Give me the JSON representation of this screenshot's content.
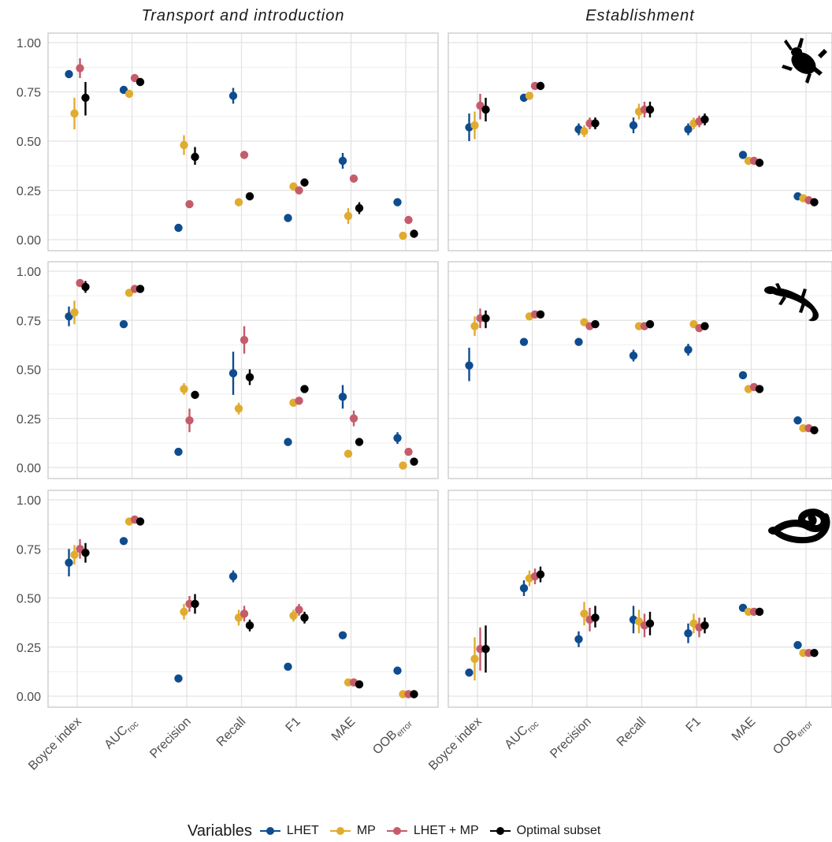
{
  "chart_data": {
    "type": "scatter",
    "facet_columns": [
      "Transport and introduction",
      "Establishment"
    ],
    "metrics": [
      "Boyce index",
      "AUC",
      "Precision",
      "Recall",
      "F1",
      "MAE",
      "OOB"
    ],
    "metric_subscripts": [
      "",
      "roc",
      "",
      "",
      "",
      "",
      "error"
    ],
    "ylim": [
      0,
      1
    ],
    "yticks": [
      "0.00",
      "0.25",
      "0.50",
      "0.75",
      "1.00"
    ],
    "row_icons": [
      "frog-silhouette",
      "lizard-silhouette",
      "snake-silhouette"
    ],
    "legend": {
      "title": "Variables",
      "position": "bottom",
      "entries": [
        {
          "name": "LHET",
          "color": "#0f4c8f"
        },
        {
          "name": "MP",
          "color": "#e0ac2f"
        },
        {
          "name": "LHET + MP",
          "color": "#c45c6c"
        },
        {
          "name": "Optimal subset",
          "color": "#000000"
        }
      ]
    },
    "panels": [
      {
        "row": 1,
        "column": "Transport and introduction",
        "series": [
          {
            "name": "LHET",
            "values": [
              0.84,
              0.76,
              0.06,
              0.73,
              0.11,
              0.4,
              0.19
            ],
            "low": [
              0.82,
              0.75,
              0.05,
              0.69,
              0.1,
              0.36,
              0.18
            ],
            "high": [
              0.86,
              0.77,
              0.07,
              0.77,
              0.12,
              0.44,
              0.2
            ]
          },
          {
            "name": "MP",
            "values": [
              0.64,
              0.74,
              0.48,
              0.19,
              0.27,
              0.12,
              0.02
            ],
            "low": [
              0.56,
              0.72,
              0.43,
              0.18,
              0.26,
              0.08,
              0.01
            ],
            "high": [
              0.72,
              0.76,
              0.53,
              0.2,
              0.28,
              0.16,
              0.03
            ]
          },
          {
            "name": "LHET + MP",
            "values": [
              0.87,
              0.82,
              0.18,
              0.43,
              0.25,
              0.31,
              0.1
            ],
            "low": [
              0.82,
              0.81,
              0.17,
              0.42,
              0.24,
              0.3,
              0.09
            ],
            "high": [
              0.92,
              0.83,
              0.19,
              0.44,
              0.26,
              0.32,
              0.11
            ]
          },
          {
            "name": "Optimal subset",
            "values": [
              0.72,
              0.8,
              0.42,
              0.22,
              0.29,
              0.16,
              0.03
            ],
            "low": [
              0.63,
              0.79,
              0.38,
              0.2,
              0.28,
              0.13,
              0.02
            ],
            "high": [
              0.8,
              0.81,
              0.47,
              0.24,
              0.3,
              0.19,
              0.04
            ]
          }
        ]
      },
      {
        "row": 1,
        "column": "Establishment",
        "series": [
          {
            "name": "LHET",
            "values": [
              0.57,
              0.72,
              0.56,
              0.58,
              0.56,
              0.43,
              0.22
            ],
            "low": [
              0.5,
              0.7,
              0.53,
              0.54,
              0.53,
              0.41,
              0.21
            ],
            "high": [
              0.64,
              0.74,
              0.59,
              0.62,
              0.59,
              0.45,
              0.23
            ]
          },
          {
            "name": "MP",
            "values": [
              0.58,
              0.73,
              0.55,
              0.65,
              0.59,
              0.4,
              0.21
            ],
            "low": [
              0.51,
              0.71,
              0.52,
              0.61,
              0.56,
              0.39,
              0.2
            ],
            "high": [
              0.65,
              0.75,
              0.58,
              0.69,
              0.62,
              0.41,
              0.22
            ]
          },
          {
            "name": "LHET + MP",
            "values": [
              0.68,
              0.78,
              0.59,
              0.66,
              0.6,
              0.4,
              0.2
            ],
            "low": [
              0.61,
              0.76,
              0.56,
              0.62,
              0.57,
              0.39,
              0.19
            ],
            "high": [
              0.74,
              0.8,
              0.62,
              0.7,
              0.63,
              0.41,
              0.21
            ]
          },
          {
            "name": "Optimal subset",
            "values": [
              0.66,
              0.78,
              0.59,
              0.66,
              0.61,
              0.39,
              0.19
            ],
            "low": [
              0.6,
              0.76,
              0.56,
              0.62,
              0.58,
              0.38,
              0.18
            ],
            "high": [
              0.72,
              0.8,
              0.62,
              0.7,
              0.64,
              0.4,
              0.2
            ]
          }
        ]
      },
      {
        "row": 2,
        "column": "Transport and introduction",
        "series": [
          {
            "name": "LHET",
            "values": [
              0.77,
              0.73,
              0.08,
              0.48,
              0.13,
              0.36,
              0.15
            ],
            "low": [
              0.72,
              0.72,
              0.07,
              0.37,
              0.12,
              0.3,
              0.12
            ],
            "high": [
              0.82,
              0.74,
              0.09,
              0.59,
              0.14,
              0.42,
              0.18
            ]
          },
          {
            "name": "MP",
            "values": [
              0.79,
              0.89,
              0.4,
              0.3,
              0.33,
              0.07,
              0.01
            ],
            "low": [
              0.73,
              0.88,
              0.37,
              0.27,
              0.31,
              0.06,
              0.0
            ],
            "high": [
              0.85,
              0.9,
              0.43,
              0.33,
              0.35,
              0.08,
              0.02
            ]
          },
          {
            "name": "LHET + MP",
            "values": [
              0.94,
              0.91,
              0.24,
              0.65,
              0.34,
              0.25,
              0.08
            ],
            "low": [
              0.93,
              0.9,
              0.18,
              0.58,
              0.32,
              0.21,
              0.07
            ],
            "high": [
              0.95,
              0.92,
              0.3,
              0.72,
              0.36,
              0.29,
              0.09
            ]
          },
          {
            "name": "Optimal subset",
            "values": [
              0.92,
              0.91,
              0.37,
              0.46,
              0.4,
              0.13,
              0.03
            ],
            "low": [
              0.89,
              0.9,
              0.35,
              0.42,
              0.39,
              0.12,
              0.02
            ],
            "high": [
              0.95,
              0.92,
              0.39,
              0.5,
              0.41,
              0.14,
              0.04
            ]
          }
        ]
      },
      {
        "row": 2,
        "column": "Establishment",
        "series": [
          {
            "name": "LHET",
            "values": [
              0.52,
              0.64,
              0.64,
              0.57,
              0.6,
              0.47,
              0.24
            ],
            "low": [
              0.44,
              0.63,
              0.63,
              0.54,
              0.57,
              0.46,
              0.23
            ],
            "high": [
              0.61,
              0.65,
              0.65,
              0.6,
              0.63,
              0.48,
              0.25
            ]
          },
          {
            "name": "MP",
            "values": [
              0.72,
              0.77,
              0.74,
              0.72,
              0.73,
              0.4,
              0.2
            ],
            "low": [
              0.67,
              0.76,
              0.73,
              0.7,
              0.72,
              0.39,
              0.19
            ],
            "high": [
              0.77,
              0.78,
              0.75,
              0.74,
              0.74,
              0.41,
              0.21
            ]
          },
          {
            "name": "LHET + MP",
            "values": [
              0.76,
              0.78,
              0.72,
              0.72,
              0.71,
              0.41,
              0.2
            ],
            "low": [
              0.71,
              0.77,
              0.71,
              0.7,
              0.7,
              0.4,
              0.19
            ],
            "high": [
              0.81,
              0.79,
              0.73,
              0.74,
              0.72,
              0.42,
              0.21
            ]
          },
          {
            "name": "Optimal subset",
            "values": [
              0.76,
              0.78,
              0.73,
              0.73,
              0.72,
              0.4,
              0.19
            ],
            "low": [
              0.71,
              0.77,
              0.72,
              0.71,
              0.71,
              0.39,
              0.18
            ],
            "high": [
              0.8,
              0.79,
              0.74,
              0.75,
              0.73,
              0.41,
              0.2
            ]
          }
        ]
      },
      {
        "row": 3,
        "column": "Transport and introduction",
        "series": [
          {
            "name": "LHET",
            "values": [
              0.68,
              0.79,
              0.09,
              0.61,
              0.15,
              0.31,
              0.13
            ],
            "low": [
              0.61,
              0.78,
              0.08,
              0.58,
              0.14,
              0.3,
              0.12
            ],
            "high": [
              0.75,
              0.8,
              0.1,
              0.64,
              0.16,
              0.32,
              0.14
            ]
          },
          {
            "name": "MP",
            "values": [
              0.72,
              0.89,
              0.43,
              0.4,
              0.41,
              0.07,
              0.01
            ],
            "low": [
              0.67,
              0.88,
              0.39,
              0.36,
              0.38,
              0.06,
              0.0
            ],
            "high": [
              0.77,
              0.9,
              0.47,
              0.44,
              0.44,
              0.08,
              0.02
            ]
          },
          {
            "name": "LHET + MP",
            "values": [
              0.75,
              0.9,
              0.47,
              0.42,
              0.44,
              0.07,
              0.01
            ],
            "low": [
              0.7,
              0.89,
              0.43,
              0.38,
              0.41,
              0.06,
              0.0
            ],
            "high": [
              0.8,
              0.91,
              0.51,
              0.46,
              0.47,
              0.08,
              0.02
            ]
          },
          {
            "name": "Optimal subset",
            "values": [
              0.73,
              0.89,
              0.47,
              0.36,
              0.4,
              0.06,
              0.01
            ],
            "low": [
              0.68,
              0.88,
              0.42,
              0.33,
              0.37,
              0.05,
              0.0
            ],
            "high": [
              0.78,
              0.9,
              0.52,
              0.39,
              0.43,
              0.07,
              0.02
            ]
          }
        ]
      },
      {
        "row": 3,
        "column": "Establishment",
        "series": [
          {
            "name": "LHET",
            "values": [
              0.12,
              0.55,
              0.29,
              0.39,
              0.32,
              0.45,
              0.26
            ],
            "low": [
              0.1,
              0.51,
              0.25,
              0.32,
              0.27,
              0.44,
              0.25
            ],
            "high": [
              0.14,
              0.59,
              0.33,
              0.46,
              0.37,
              0.46,
              0.27
            ]
          },
          {
            "name": "MP",
            "values": [
              0.19,
              0.6,
              0.42,
              0.38,
              0.37,
              0.43,
              0.22
            ],
            "low": [
              0.08,
              0.56,
              0.36,
              0.32,
              0.32,
              0.42,
              0.21
            ],
            "high": [
              0.3,
              0.64,
              0.48,
              0.44,
              0.42,
              0.44,
              0.23
            ]
          },
          {
            "name": "LHET + MP",
            "values": [
              0.24,
              0.61,
              0.39,
              0.36,
              0.35,
              0.43,
              0.22
            ],
            "low": [
              0.13,
              0.57,
              0.33,
              0.3,
              0.3,
              0.42,
              0.21
            ],
            "high": [
              0.35,
              0.65,
              0.45,
              0.42,
              0.4,
              0.44,
              0.23
            ]
          },
          {
            "name": "Optimal subset",
            "values": [
              0.24,
              0.62,
              0.4,
              0.37,
              0.36,
              0.43,
              0.22
            ],
            "low": [
              0.12,
              0.58,
              0.35,
              0.31,
              0.32,
              0.42,
              0.21
            ],
            "high": [
              0.36,
              0.66,
              0.46,
              0.43,
              0.4,
              0.44,
              0.23
            ]
          }
        ]
      }
    ]
  }
}
